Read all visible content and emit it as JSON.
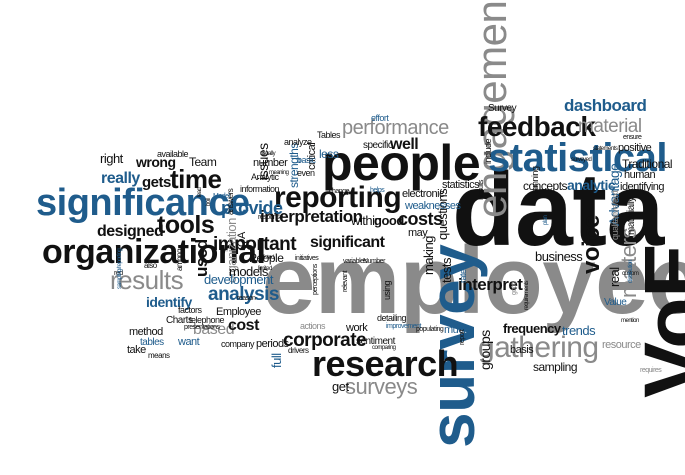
{
  "palette": {
    "black": "#111111",
    "gray": "#8a8a8a",
    "lightgray": "#b4b4b4",
    "blue": "#1f5c8c",
    "lightblue": "#6b93b8"
  },
  "words": [
    {
      "text": "employee",
      "color": "gray"
    },
    {
      "text": "data",
      "color": "black"
    },
    {
      "text": "VoE",
      "color": "black"
    },
    {
      "text": "survey",
      "color": "blue"
    },
    {
      "text": "people",
      "color": "black"
    },
    {
      "text": "engagement",
      "color": "gray"
    },
    {
      "text": "statistical",
      "color": "blue"
    },
    {
      "text": "significance",
      "color": "blue"
    },
    {
      "text": "organizational",
      "color": "black"
    },
    {
      "text": "research",
      "color": "black"
    },
    {
      "text": "reporting",
      "color": "black"
    },
    {
      "text": "feedback",
      "color": "black"
    },
    {
      "text": "gathering",
      "color": "gray"
    },
    {
      "text": "performance",
      "color": "gray"
    },
    {
      "text": "dashboard",
      "color": "blue"
    },
    {
      "text": "material",
      "color": "gray"
    },
    {
      "text": "matters",
      "color": "gray"
    },
    {
      "text": "voice",
      "color": "black"
    },
    {
      "text": "time",
      "color": "black"
    },
    {
      "text": "tools",
      "color": "black"
    },
    {
      "text": "results",
      "color": "gray"
    },
    {
      "text": "analysis",
      "color": "blue"
    },
    {
      "text": "surveys",
      "color": "gray"
    },
    {
      "text": "corporate",
      "color": "black"
    },
    {
      "text": "interpret",
      "color": "black"
    },
    {
      "text": "costs",
      "color": "black"
    },
    {
      "text": "important",
      "color": "black"
    },
    {
      "text": "significant",
      "color": "black"
    },
    {
      "text": "interpretation",
      "color": "black"
    },
    {
      "text": "provide",
      "color": "blue"
    },
    {
      "text": "designed",
      "color": "black"
    },
    {
      "text": "really",
      "color": "blue"
    },
    {
      "text": "gets",
      "color": "black"
    },
    {
      "text": "wrong",
      "color": "black"
    },
    {
      "text": "issues",
      "color": "black"
    },
    {
      "text": "organization",
      "color": "gray"
    },
    {
      "text": "well",
      "color": "black"
    },
    {
      "text": "good",
      "color": "black"
    },
    {
      "text": "analytic",
      "color": "blue"
    },
    {
      "text": "business",
      "color": "black"
    },
    {
      "text": "Advantage",
      "color": "blue"
    },
    {
      "text": "frequency",
      "color": "black"
    },
    {
      "text": "trends",
      "color": "blue"
    },
    {
      "text": "identify",
      "color": "blue"
    },
    {
      "text": "development",
      "color": "blue"
    },
    {
      "text": "based",
      "color": "gray"
    },
    {
      "text": "cost",
      "color": "black"
    },
    {
      "text": "models",
      "color": "black"
    },
    {
      "text": "used",
      "color": "black"
    },
    {
      "text": "Employee",
      "color": "black"
    },
    {
      "text": "People",
      "color": "black"
    },
    {
      "text": "right",
      "color": "black"
    },
    {
      "text": "Team",
      "color": "black"
    },
    {
      "text": "full",
      "color": "blue"
    },
    {
      "text": "periods",
      "color": "black"
    },
    {
      "text": "groups",
      "color": "black"
    },
    {
      "text": "get",
      "color": "black"
    },
    {
      "text": "basis",
      "color": "black"
    },
    {
      "text": "sampling",
      "color": "black"
    },
    {
      "text": "resource",
      "color": "gray"
    },
    {
      "text": "concepts",
      "color": "black"
    },
    {
      "text": "running",
      "color": "black"
    },
    {
      "text": "statistics",
      "color": "black"
    },
    {
      "text": "questions",
      "color": "black"
    },
    {
      "text": "making",
      "color": "black"
    },
    {
      "text": "may",
      "color": "black"
    },
    {
      "text": "within",
      "color": "black"
    },
    {
      "text": "electronic",
      "color": "black"
    },
    {
      "text": "weaknesses",
      "color": "blue"
    },
    {
      "text": "specific",
      "color": "black"
    },
    {
      "text": "effort",
      "color": "blue"
    },
    {
      "text": "Survey",
      "color": "black"
    },
    {
      "text": "include",
      "color": "black"
    },
    {
      "text": "positive",
      "color": "black"
    },
    {
      "text": "Traditional",
      "color": "black"
    },
    {
      "text": "human",
      "color": "black"
    },
    {
      "text": "identifying",
      "color": "black"
    },
    {
      "text": "qualitative/text",
      "color": "gray"
    },
    {
      "text": "real",
      "color": "black"
    },
    {
      "text": "materially",
      "color": "black"
    },
    {
      "text": "strengths",
      "color": "blue"
    },
    {
      "text": "critical",
      "color": "black"
    },
    {
      "text": "less",
      "color": "blue"
    },
    {
      "text": "Tables",
      "color": "black"
    },
    {
      "text": "number",
      "color": "black"
    },
    {
      "text": "information",
      "color": "black"
    },
    {
      "text": "Analytic",
      "color": "black"
    },
    {
      "text": "basic",
      "color": "blue"
    },
    {
      "text": "even",
      "color": "black"
    },
    {
      "text": "analyze",
      "color": "black"
    },
    {
      "text": "available",
      "color": "black"
    },
    {
      "text": "factors",
      "color": "black"
    },
    {
      "text": "Charts",
      "color": "black"
    },
    {
      "text": "telephone",
      "color": "black"
    },
    {
      "text": "method",
      "color": "black"
    },
    {
      "text": "tables",
      "color": "blue"
    },
    {
      "text": "take",
      "color": "black"
    },
    {
      "text": "want",
      "color": "blue"
    },
    {
      "text": "company",
      "color": "black"
    },
    {
      "text": "actions",
      "color": "gray"
    },
    {
      "text": "sentiment",
      "color": "black"
    },
    {
      "text": "work",
      "color": "black"
    },
    {
      "text": "much",
      "color": "blue"
    },
    {
      "text": "improvement",
      "color": "blue"
    },
    {
      "text": "using",
      "color": "black"
    },
    {
      "text": "detailing",
      "color": "black"
    },
    {
      "text": "tests",
      "color": "black"
    },
    {
      "text": "rate",
      "color": "blue"
    },
    {
      "text": "Value",
      "color": "blue"
    },
    {
      "text": "reason",
      "color": "black"
    },
    {
      "text": "drivers",
      "color": "black"
    },
    {
      "text": "means",
      "color": "black"
    },
    {
      "text": "QA",
      "color": "black"
    },
    {
      "text": "answers",
      "color": "black"
    },
    {
      "text": "among",
      "color": "black"
    },
    {
      "text": "also",
      "color": "black"
    },
    {
      "text": "red",
      "color": "black"
    },
    {
      "text": "sampling/reporting",
      "color": "blue"
    },
    {
      "text": "presentations",
      "color": "black"
    },
    {
      "text": "response",
      "color": "black"
    },
    {
      "text": "initiatives",
      "color": "black"
    },
    {
      "text": "listed",
      "color": "black"
    },
    {
      "text": "perceptions",
      "color": "black"
    },
    {
      "text": "relevant",
      "color": "black"
    },
    {
      "text": "populating",
      "color": "black"
    },
    {
      "text": "report",
      "color": "black"
    },
    {
      "text": "requirements",
      "color": "black"
    },
    {
      "text": "comparing",
      "color": "black"
    },
    {
      "text": "variables",
      "color": "black"
    },
    {
      "text": "Number",
      "color": "black"
    },
    {
      "text": "change",
      "color": "black"
    },
    {
      "text": "helps",
      "color": "blue"
    },
    {
      "text": "Results",
      "color": "black"
    },
    {
      "text": "ensure",
      "color": "black"
    },
    {
      "text": "statements",
      "color": "black"
    },
    {
      "text": "surveyed",
      "color": "black"
    },
    {
      "text": "custom",
      "color": "black"
    },
    {
      "text": "distribution",
      "color": "blue"
    },
    {
      "text": "mention",
      "color": "black"
    },
    {
      "text": "requires",
      "color": "gray"
    },
    {
      "text": "usually",
      "color": "black"
    },
    {
      "text": "meaning",
      "color": "black"
    },
    {
      "text": "Model",
      "color": "blue"
    },
    {
      "text": "lead",
      "color": "black"
    },
    {
      "text": "boil",
      "color": "black"
    },
    {
      "text": "limited",
      "color": "black"
    },
    {
      "text": "plan",
      "color": "blue"
    },
    {
      "text": "good",
      "color": "gray"
    }
  ]
}
